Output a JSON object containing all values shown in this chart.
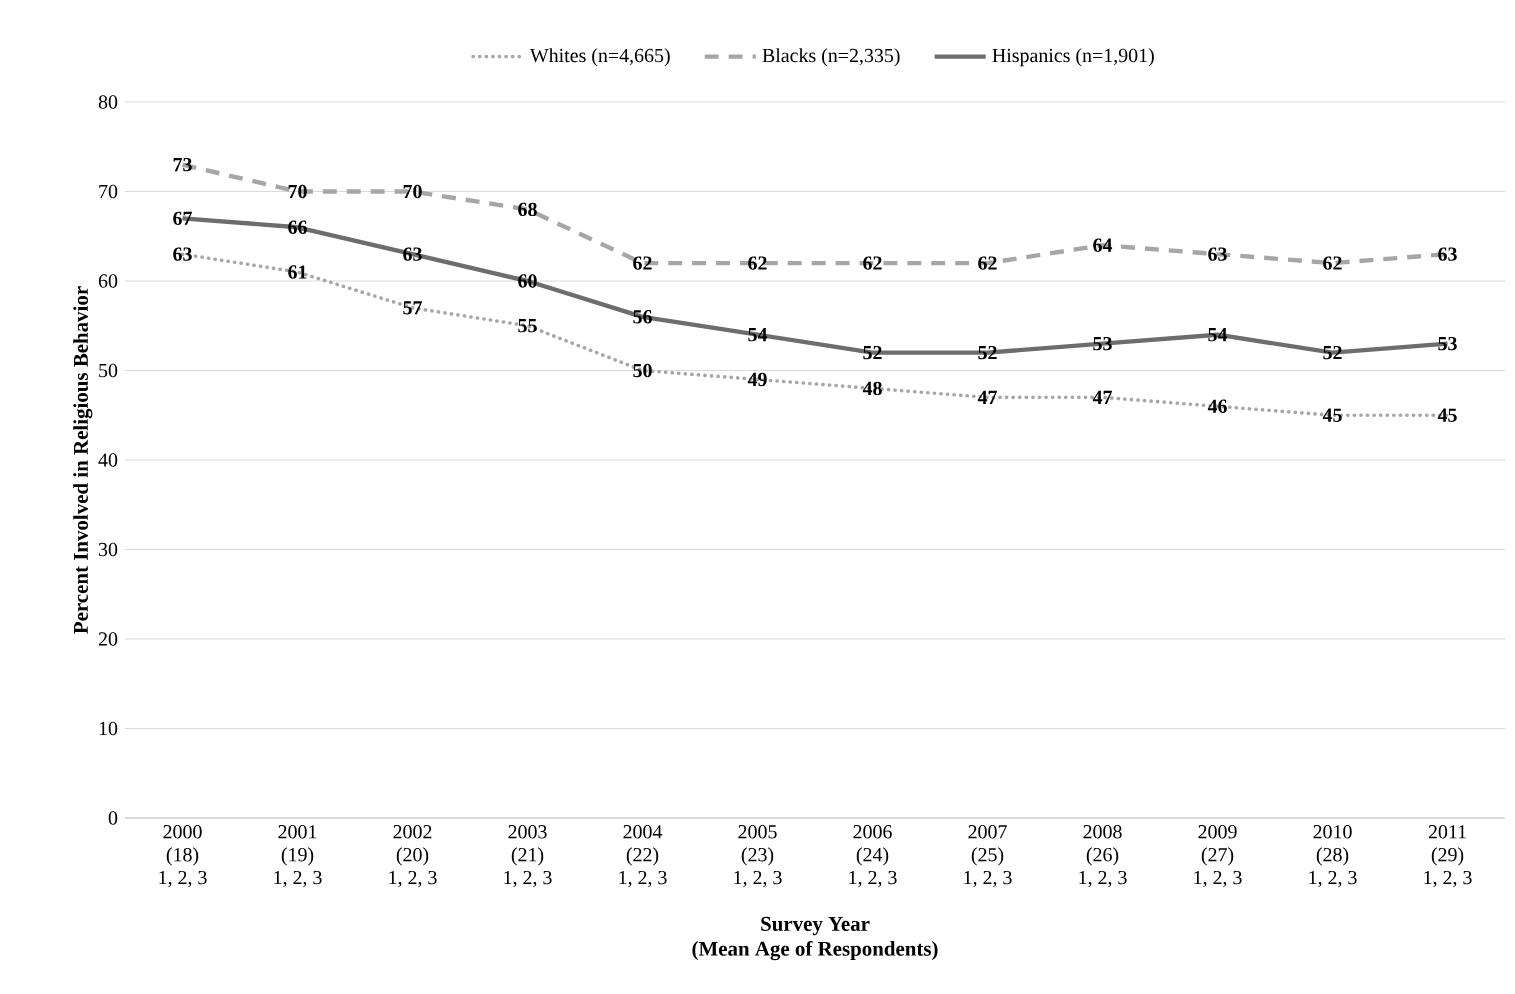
{
  "chart_data": {
    "type": "line",
    "categories": [
      "2000\n(18)\n1, 2, 3",
      "2001\n(19)\n1, 2, 3",
      "2002\n(20)\n1, 2, 3",
      "2003\n(21)\n1, 2, 3",
      "2004\n(22)\n1, 2, 3",
      "2005\n(23)\n1, 2, 3",
      "2006\n(24)\n1, 2, 3",
      "2007\n(25)\n1, 2, 3",
      "2008\n(26)\n1, 2, 3",
      "2009\n(27)\n1, 2, 3",
      "2010\n(28)\n1, 2, 3",
      "2011\n(29)\n1, 2, 3"
    ],
    "series": [
      {
        "name": "Whites (n=4,665)",
        "color": "#a6a6a6",
        "line_style": "dotted",
        "values": [
          63,
          61,
          57,
          55,
          50,
          49,
          48,
          47,
          47,
          46,
          45,
          45
        ]
      },
      {
        "name": "Blacks (n=2,335)",
        "color": "#a6a6a6",
        "line_style": "dashed",
        "values": [
          73,
          70,
          70,
          68,
          62,
          62,
          62,
          62,
          64,
          63,
          62,
          63
        ]
      },
      {
        "name": "Hispanics (n=1,901)",
        "color": "#6d6d6d",
        "line_style": "solid",
        "values": [
          67,
          66,
          63,
          60,
          56,
          54,
          52,
          52,
          53,
          54,
          52,
          53
        ]
      }
    ],
    "xlabel": "Survey Year\n(Mean Age of Respondents)",
    "ylabel": "Percent Involved in Religious Behavior",
    "ylim": [
      0,
      80
    ],
    "yticks": [
      0,
      10,
      20,
      30,
      40,
      50,
      60,
      70,
      80
    ],
    "grid": "y",
    "legend": "top",
    "data_labels": true
  }
}
